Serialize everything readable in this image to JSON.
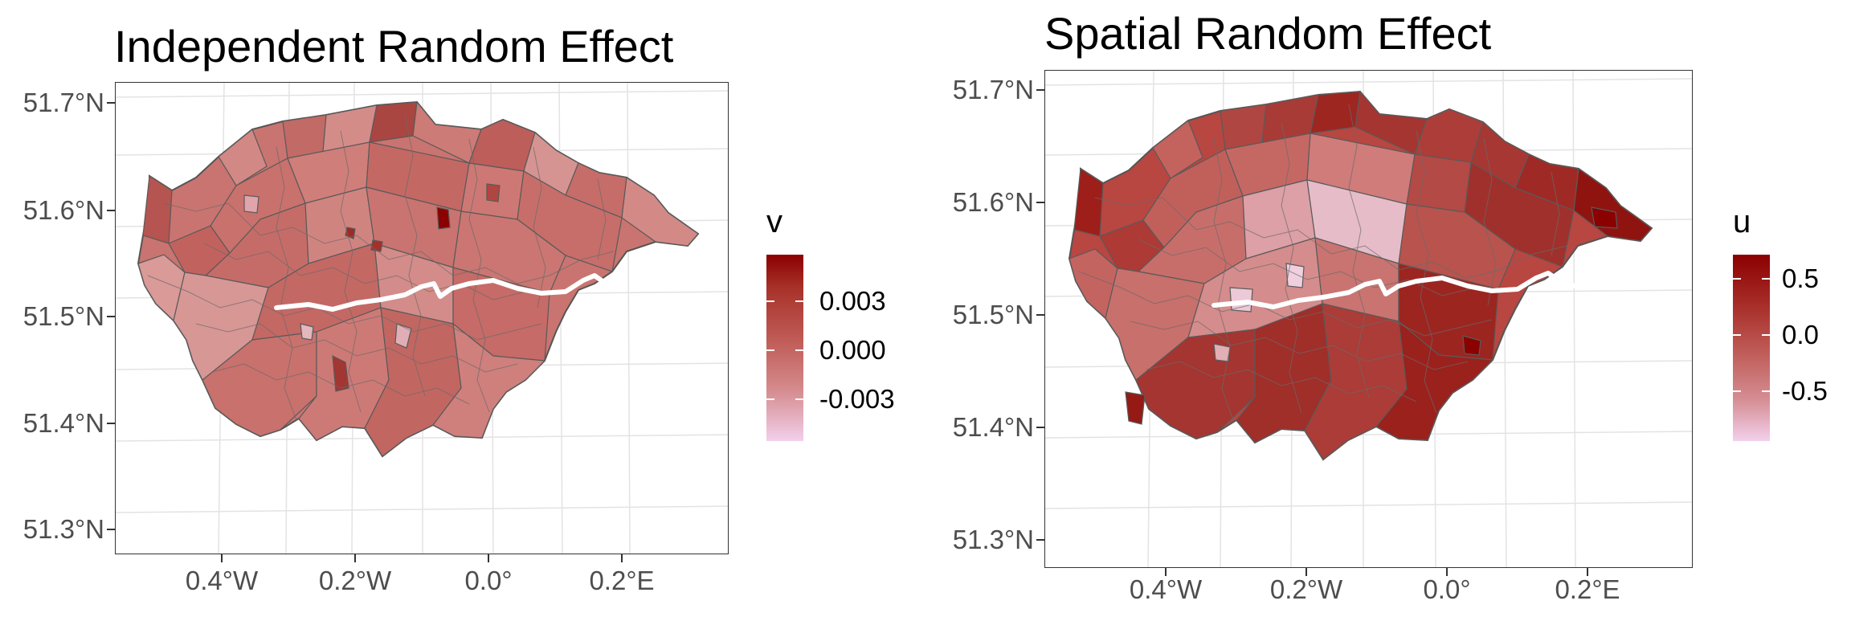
{
  "panels": [
    {
      "title": "Independent Random Effect",
      "legend": {
        "title": "v",
        "labels": [
          "0.003",
          "0.000",
          "-0.003"
        ]
      },
      "y_ticks": [
        "51.7°N",
        "51.6°N",
        "51.5°N",
        "51.4°N",
        "51.3°N"
      ],
      "x_ticks": [
        "0.4°W",
        "0.2°W",
        "0.0°",
        "0.2°E"
      ]
    },
    {
      "title": "Spatial Random Effect",
      "legend": {
        "title": "u",
        "labels": [
          "0.5",
          "0.0",
          "-0.5"
        ]
      },
      "y_ticks": [
        "51.7°N",
        "51.6°N",
        "51.5°N",
        "51.4°N",
        "51.3°N"
      ],
      "x_ticks": [
        "0.4°W",
        "0.2°W",
        "0.0°",
        "0.2°E"
      ]
    }
  ],
  "colors": {
    "legend_high": "#8b0000",
    "legend_low": "#f3d0eb",
    "border": "#555555",
    "river": "#ffffff",
    "grid": "#e3e3e3"
  }
}
